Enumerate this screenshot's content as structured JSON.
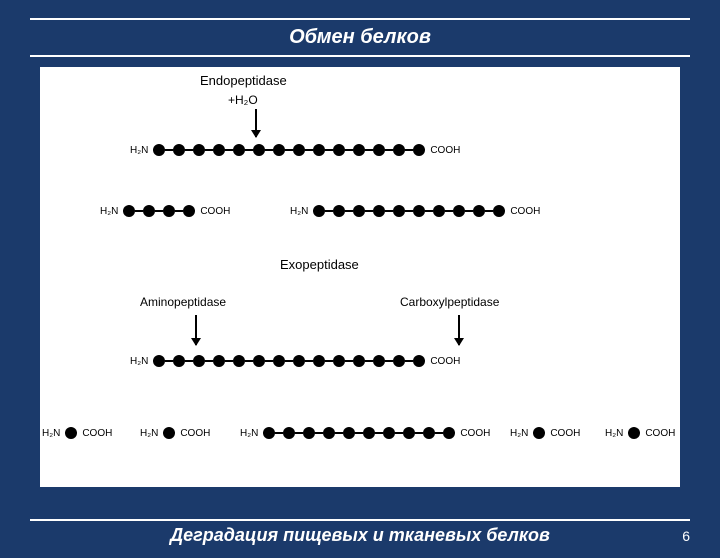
{
  "page": {
    "title": "Обмен белков",
    "subtitle": "Деградация пищевых и тканевых белков",
    "page_number": "6",
    "background_color": "#1b3a6b",
    "rule_color": "#ffffff"
  },
  "diagram": {
    "background_color": "#ffffff",
    "bead_color": "#000000",
    "bead_radius": 6,
    "link_width": 8,
    "font_size_label": 12,
    "font_size_terminal": 10,
    "sections": {
      "endo": {
        "title": "Endopeptidase",
        "reagent": "+H₂O",
        "chain_top": {
          "n_term": "H₂N",
          "c_term": "COOH",
          "beads": 14
        },
        "products": [
          {
            "n_term": "H₂N",
            "c_term": "COOH",
            "beads": 4
          },
          {
            "n_term": "H₂N",
            "c_term": "COOH",
            "beads": 10
          }
        ],
        "cleavage_index": 4
      },
      "exo": {
        "title": "Exopeptidase",
        "amino_label": "Aminopeptidase",
        "carboxy_label": "Carboxylpeptidase",
        "chain": {
          "n_term": "H₂N",
          "c_term": "COOH",
          "beads": 14
        },
        "products": [
          {
            "n_term": "H₂N",
            "c_term": "COOH",
            "beads": 1
          },
          {
            "n_term": "H₂N",
            "c_term": "COOH",
            "beads": 1
          },
          {
            "n_term": "H₂N",
            "c_term": "COOH",
            "beads": 10
          },
          {
            "n_term": "H₂N",
            "c_term": "COOH",
            "beads": 1
          },
          {
            "n_term": "H₂N",
            "c_term": "COOH",
            "beads": 1
          }
        ],
        "cleavage_indices": [
          2,
          12
        ]
      }
    }
  }
}
